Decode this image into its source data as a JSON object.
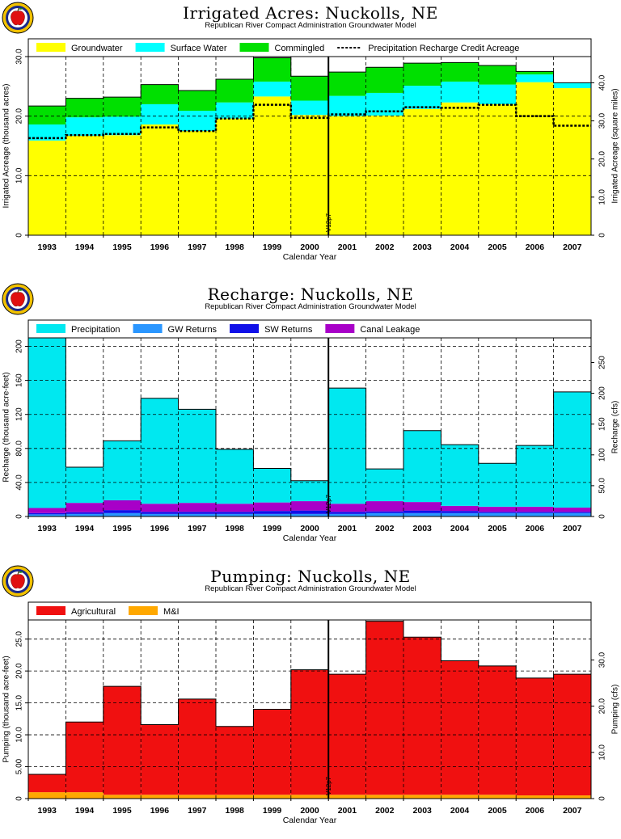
{
  "colors": {
    "groundwater": "#ffff00",
    "surface_water": "#00ffff",
    "commingled": "#00e000",
    "precipitation": "#00e8f0",
    "gw_returns": "#2a96ff",
    "sw_returns": "#1010e8",
    "canal_leakage": "#a800c8",
    "agricultural": "#f01010",
    "mi": "#ffa800"
  },
  "common": {
    "subtitle": "Republican River Compact Administration Groundwater Model",
    "xlabel": "Calendar Year",
    "marker_label": "V12p7",
    "logo_icon": "apple-seal-icon"
  },
  "chart_data": [
    {
      "id": "acres",
      "type": "area",
      "title": "Irrigated Acres: Nuckolls, NE",
      "xlabel": "Calendar Year",
      "ylabel": "Irrigated Acreage (thousand acres)",
      "y2label": "Irrigated Acreage (square miles)",
      "categories": [
        "1993",
        "1994",
        "1995",
        "1996",
        "1997",
        "1998",
        "1999",
        "2000",
        "2001",
        "2002",
        "2003",
        "2004",
        "2005",
        "2006",
        "2007"
      ],
      "ylim": [
        0,
        30
      ],
      "yticks": [
        "0",
        "10.0",
        "20.0",
        "30.0"
      ],
      "y2ticks": [
        "0",
        "10.0",
        "20.0",
        "30.0",
        "40.0"
      ],
      "y2max": 46.875,
      "grid": true,
      "legend_position": "top",
      "marker_year": 2001,
      "stacked": [
        {
          "name": "Groundwater",
          "values": [
            15.9,
            16.7,
            16.8,
            18.6,
            17.5,
            19.6,
            23.3,
            20.2,
            20.0,
            20.1,
            21.2,
            22.3,
            22.0,
            25.7,
            24.7
          ]
        },
        {
          "name": "Surface Water",
          "values": [
            2.7,
            3.1,
            3.1,
            3.4,
            3.4,
            2.7,
            2.5,
            2.4,
            3.4,
            3.8,
            3.9,
            3.5,
            3.3,
            1.3,
            0.9
          ]
        },
        {
          "name": "Commingled",
          "values": [
            3.1,
            3.2,
            3.3,
            3.3,
            3.4,
            3.9,
            4.0,
            4.1,
            4.0,
            4.3,
            3.8,
            3.2,
            3.2,
            0.5,
            0.0
          ]
        }
      ],
      "line": {
        "name": "Precipitation Recharge Credit Acreage",
        "values": [
          16.3,
          16.8,
          17.0,
          18.1,
          17.5,
          19.6,
          21.9,
          19.7,
          20.3,
          20.8,
          21.5,
          21.4,
          21.9,
          20.0,
          18.4
        ]
      }
    },
    {
      "id": "recharge",
      "type": "area",
      "title": "Recharge: Nuckolls, NE",
      "xlabel": "Calendar Year",
      "ylabel": "Recharge (thousand acre-feet)",
      "y2label": "Recharge (cfs)",
      "categories": [
        "1993",
        "1994",
        "1995",
        "1996",
        "1997",
        "1998",
        "1999",
        "2000",
        "2001",
        "2002",
        "2003",
        "2004",
        "2005",
        "2006",
        "2007"
      ],
      "ylim": [
        0,
        210
      ],
      "yticks": [
        "0",
        "40.0",
        "80.0",
        "120",
        "160",
        "200"
      ],
      "y2ticks": [
        "0",
        "50.0",
        "100",
        "150",
        "200",
        "250"
      ],
      "y2max": 290,
      "grid": true,
      "legend_position": "top",
      "marker_year": 2001,
      "stacked": [
        {
          "name": "GW Returns",
          "values": [
            2.5,
            3.0,
            4.0,
            3.0,
            3.0,
            3.0,
            3.0,
            3.0,
            3.0,
            4.0,
            4.0,
            4.0,
            4.0,
            4.0,
            4.0
          ]
        },
        {
          "name": "SW Returns",
          "values": [
            1.5,
            2.0,
            3.5,
            2.5,
            2.5,
            2.5,
            3.5,
            4.0,
            2.5,
            2.0,
            3.0,
            2.5,
            1.5,
            1.5,
            1.5
          ]
        },
        {
          "name": "Canal Leakage",
          "values": [
            6.0,
            11.0,
            11.5,
            9.5,
            10.5,
            9.5,
            10.0,
            11.0,
            9.5,
            12.0,
            10.0,
            6.0,
            6.0,
            6.0,
            5.0
          ]
        },
        {
          "name": "Precipitation",
          "values": [
            200.0,
            42.0,
            70.0,
            124.0,
            110.0,
            64.0,
            40.0,
            24.0,
            136.0,
            38.0,
            84.0,
            72.0,
            51.0,
            72.0,
            136.0
          ]
        }
      ],
      "legend_order": [
        "Precipitation",
        "GW Returns",
        "SW Returns",
        "Canal Leakage"
      ]
    },
    {
      "id": "pumping",
      "type": "area",
      "title": "Pumping: Nuckolls, NE",
      "xlabel": "Calendar Year",
      "ylabel": "Pumping (thousand acre-feet)",
      "y2label": "Pumping (cfs)",
      "categories": [
        "1993",
        "1994",
        "1995",
        "1996",
        "1997",
        "1998",
        "1999",
        "2000",
        "2001",
        "2002",
        "2003",
        "2004",
        "2005",
        "2006",
        "2007"
      ],
      "ylim": [
        0,
        28
      ],
      "yticks": [
        "0",
        "5.00",
        "10.0",
        "15.0",
        "20.0",
        "25.0"
      ],
      "y2ticks": [
        "0",
        "10.0",
        "20.0",
        "30.0"
      ],
      "y2max": 38.67,
      "grid": true,
      "legend_position": "top",
      "marker_year": 2001,
      "stacked": [
        {
          "name": "M&I",
          "values": [
            1.0,
            1.0,
            0.6,
            0.6,
            0.6,
            0.6,
            0.6,
            0.6,
            0.6,
            0.6,
            0.6,
            0.6,
            0.6,
            0.5,
            0.5
          ]
        },
        {
          "name": "Agricultural",
          "values": [
            2.8,
            11.0,
            17.0,
            11.0,
            15.0,
            10.7,
            13.4,
            19.6,
            18.9,
            27.2,
            24.7,
            21.0,
            20.2,
            18.4,
            19.0
          ]
        }
      ],
      "legend_order": [
        "Agricultural",
        "M&I"
      ]
    }
  ]
}
